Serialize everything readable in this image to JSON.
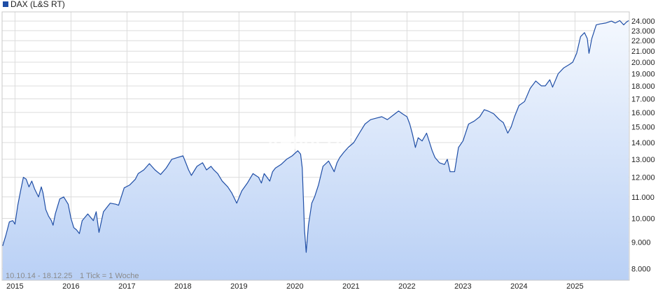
{
  "chart_data": {
    "type": "area",
    "legend": {
      "label": "DAX (L&S RT)",
      "color": "#1f4ea6",
      "position": "top-left"
    },
    "watermark": "ARIVA.DE",
    "range_label": "10.10.14 - 18.12.25",
    "tick_label": "1 Tick = 1 Woche",
    "y_scale": "log",
    "ylim": [
      7600,
      25000
    ],
    "xlim": [
      2014.77,
      2025.97
    ],
    "y_ticks": [
      {
        "value": 8000,
        "label": "8.000"
      },
      {
        "value": 9000,
        "label": "9.000"
      },
      {
        "value": 10000,
        "label": "10.000"
      },
      {
        "value": 11000,
        "label": "11.000"
      },
      {
        "value": 12000,
        "label": "12.000"
      },
      {
        "value": 13000,
        "label": "13.000"
      },
      {
        "value": 14000,
        "label": "14.000"
      },
      {
        "value": 15000,
        "label": "15.000"
      },
      {
        "value": 16000,
        "label": "16.000"
      },
      {
        "value": 17000,
        "label": "17.000"
      },
      {
        "value": 18000,
        "label": "18.000"
      },
      {
        "value": 19000,
        "label": "19.000"
      },
      {
        "value": 20000,
        "label": "20.000"
      },
      {
        "value": 21000,
        "label": "21.000"
      },
      {
        "value": 22000,
        "label": "22.000"
      },
      {
        "value": 23000,
        "label": "23.000"
      },
      {
        "value": 24000,
        "label": "24.000"
      }
    ],
    "x_ticks": [
      {
        "value": 2015,
        "label": "2015"
      },
      {
        "value": 2016,
        "label": "2016"
      },
      {
        "value": 2017,
        "label": "2017"
      },
      {
        "value": 2018,
        "label": "2018"
      },
      {
        "value": 2019,
        "label": "2019"
      },
      {
        "value": 2020,
        "label": "2020"
      },
      {
        "value": 2021,
        "label": "2021"
      },
      {
        "value": 2022,
        "label": "2022"
      },
      {
        "value": 2023,
        "label": "2023"
      },
      {
        "value": 2024,
        "label": "2024"
      },
      {
        "value": 2025,
        "label": "2025"
      }
    ],
    "grid": true,
    "colors": {
      "line": "#1f4ea6",
      "fill_top": "#f4f8fe",
      "fill_bottom": "#b9d0f5",
      "grid": "#dcdcdc"
    },
    "series": [
      {
        "x": [
          2014.78,
          2014.84,
          2014.9,
          2014.96,
          2015.0,
          2015.05,
          2015.1,
          2015.15,
          2015.2,
          2015.25,
          2015.3,
          2015.35,
          2015.42,
          2015.47,
          2015.5,
          2015.55,
          2015.6,
          2015.65,
          2015.68,
          2015.72,
          2015.8,
          2015.87,
          2015.95,
          2016.0,
          2016.05,
          2016.1,
          2016.15,
          2016.2,
          2016.3,
          2016.4,
          2016.45,
          2016.5,
          2016.58,
          2016.7,
          2016.8,
          2016.85,
          2016.95,
          2017.05,
          2017.15,
          2017.2,
          2017.3,
          2017.4,
          2017.5,
          2017.6,
          2017.7,
          2017.8,
          2017.9,
          2018.0,
          2018.05,
          2018.1,
          2018.15,
          2018.25,
          2018.35,
          2018.42,
          2018.5,
          2018.55,
          2018.62,
          2018.7,
          2018.8,
          2018.87,
          2018.96,
          2019.05,
          2019.15,
          2019.25,
          2019.35,
          2019.4,
          2019.45,
          2019.55,
          2019.6,
          2019.65,
          2019.75,
          2019.85,
          2019.95,
          2020.05,
          2020.1,
          2020.13,
          2020.17,
          2020.2,
          2020.24,
          2020.3,
          2020.35,
          2020.42,
          2020.5,
          2020.6,
          2020.7,
          2020.75,
          2020.8,
          2020.87,
          2020.95,
          2021.05,
          2021.15,
          2021.25,
          2021.35,
          2021.45,
          2021.55,
          2021.65,
          2021.75,
          2021.85,
          2021.92,
          2022.0,
          2022.05,
          2022.1,
          2022.15,
          2022.2,
          2022.27,
          2022.35,
          2022.45,
          2022.5,
          2022.58,
          2022.67,
          2022.72,
          2022.77,
          2022.85,
          2022.92,
          2023.0,
          2023.1,
          2023.2,
          2023.3,
          2023.38,
          2023.45,
          2023.55,
          2023.65,
          2023.72,
          2023.8,
          2023.86,
          2023.92,
          2024.0,
          2024.1,
          2024.2,
          2024.3,
          2024.4,
          2024.47,
          2024.55,
          2024.6,
          2024.7,
          2024.8,
          2024.9,
          2024.96,
          2025.03,
          2025.1,
          2025.17,
          2025.22,
          2025.25,
          2025.3,
          2025.38,
          2025.45,
          2025.55,
          2025.65,
          2025.72,
          2025.8,
          2025.87,
          2025.92,
          2025.96
        ],
        "y": [
          8850,
          9300,
          9850,
          9900,
          9750,
          10600,
          11300,
          12000,
          11900,
          11500,
          11800,
          11400,
          11000,
          11500,
          11200,
          10400,
          10100,
          9900,
          9700,
          10200,
          10900,
          11000,
          10650,
          10000,
          9600,
          9500,
          9350,
          9900,
          10200,
          9900,
          10300,
          9400,
          10300,
          10700,
          10650,
          10600,
          11450,
          11600,
          11900,
          12200,
          12400,
          12750,
          12400,
          12150,
          12500,
          13000,
          13100,
          13200,
          12800,
          12400,
          12100,
          12600,
          12800,
          12400,
          12600,
          12400,
          12200,
          11800,
          11500,
          11200,
          10700,
          11300,
          11700,
          12200,
          12000,
          11700,
          12200,
          11800,
          12300,
          12500,
          12700,
          13000,
          13200,
          13500,
          13300,
          12500,
          9500,
          8600,
          9700,
          10700,
          11000,
          11600,
          12600,
          12900,
          12300,
          12800,
          13100,
          13400,
          13700,
          14000,
          14600,
          15200,
          15500,
          15600,
          15700,
          15500,
          15800,
          16100,
          15900,
          15700,
          15200,
          14500,
          13700,
          14300,
          14100,
          14600,
          13500,
          13100,
          12800,
          12700,
          13000,
          12300,
          12300,
          13700,
          14100,
          15200,
          15400,
          15700,
          16200,
          16100,
          15900,
          15500,
          15300,
          14600,
          15000,
          15700,
          16500,
          16800,
          17800,
          18400,
          18000,
          18000,
          18500,
          17900,
          19000,
          19500,
          19800,
          20000,
          20800,
          22400,
          22800,
          22200,
          20800,
          22200,
          23600,
          23700,
          23800,
          24000,
          23800,
          24050,
          23600,
          23900,
          24050
        ]
      }
    ]
  }
}
